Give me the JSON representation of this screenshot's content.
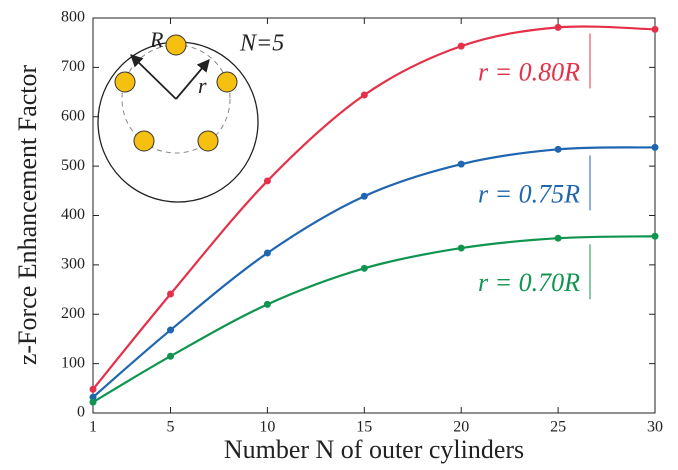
{
  "chart_data": {
    "type": "line",
    "x_label": "Number N of outer cylinders",
    "y_label": "z-Force Enhancement Factor",
    "x": [
      1,
      5,
      10,
      15,
      20,
      25,
      30
    ],
    "series": [
      {
        "name": "r = 0.80R",
        "color": "#e5304a",
        "values": [
          48,
          241,
          470,
          644,
          743,
          781,
          777
        ]
      },
      {
        "name": "r = 0.75R",
        "color": "#1f65b0",
        "values": [
          32,
          168,
          324,
          439,
          504,
          534,
          538
        ]
      },
      {
        "name": "r = 0.70R",
        "color": "#109550",
        "values": [
          22,
          115,
          220,
          293,
          334,
          354,
          358
        ]
      }
    ],
    "xlim": [
      1,
      30
    ],
    "xticks": [
      1,
      5,
      10,
      15,
      20,
      25,
      30
    ],
    "ylim": [
      0,
      800
    ],
    "yticks": [
      0,
      100,
      200,
      300,
      400,
      500,
      600,
      700,
      800
    ],
    "inset_labels": [
      "R",
      "r",
      "N=5"
    ]
  }
}
